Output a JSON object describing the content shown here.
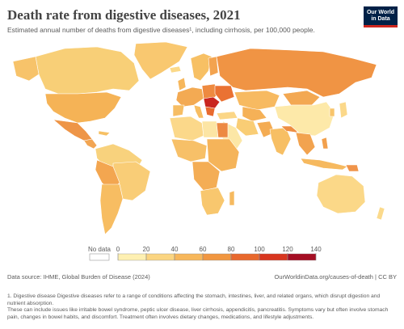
{
  "header": {
    "title": "Death rate from digestive diseases, 2021",
    "subtitle": "Estimated annual number of deaths from digestive diseases¹, including cirrhosis, per 100,000 people."
  },
  "logo": {
    "line1": "Our World",
    "line2": "in Data",
    "bg_color": "#002147",
    "accent_color": "#ce261e"
  },
  "legend": {
    "no_data_label": "No data",
    "ticks": [
      "0",
      "20",
      "40",
      "60",
      "80",
      "100",
      "120",
      "140"
    ],
    "colors": [
      "#fef0b2",
      "#fbd581",
      "#f7b75b",
      "#f19640",
      "#e8682d",
      "#d8361f",
      "#a50e24"
    ],
    "no_data_color": "#ffffff"
  },
  "footer": {
    "source": "Data source: IHME, Global Burden of Disease (2024)",
    "url": "OurWorldinData.org/causes-of-death",
    "license": "CC BY"
  },
  "note": {
    "line1": "1. Digestive disease Digestive diseases refer to a range of conditions affecting the stomach, intestines, liver, and related organs, which disrupt digestion and nutrient absorption.",
    "line2": "These can include issues like irritable bowel syndrome, peptic ulcer disease, liver cirrhosis, appendicitis, pancreatitis. Symptoms vary but often involve stomach pain, changes in bowel habits, and discomfort. Treatment often involves dietary changes, medications, and lifestyle adjustments."
  }
}
